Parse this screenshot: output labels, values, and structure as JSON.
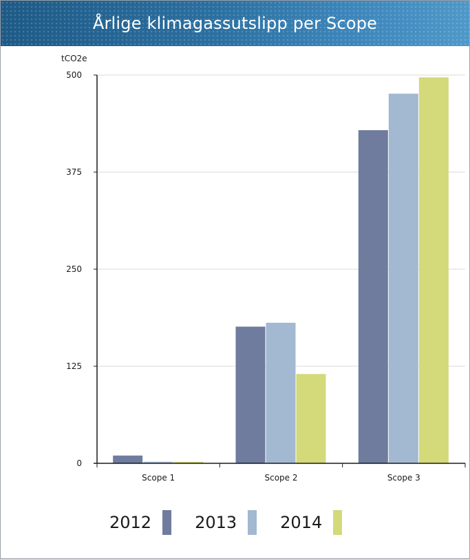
{
  "header": {
    "title": "Årlige klimagassutslipp per Scope"
  },
  "chart_data": {
    "type": "bar",
    "title": "Årlige klimagassutslipp per Scope",
    "ylabel": "tCO2e",
    "xlabel": "",
    "categories": [
      "Scope 1",
      "Scope 2",
      "Scope 3"
    ],
    "ylim": [
      0,
      500
    ],
    "yticks": [
      "0",
      "125",
      "250",
      "375",
      "500"
    ],
    "grid": true,
    "legend_placement": "bottom",
    "series": [
      {
        "name": "2012",
        "color": "#6f7c9e",
        "values": [
          10,
          176,
          429
        ]
      },
      {
        "name": "2013",
        "color": "#a3b8d1",
        "values": [
          2,
          181,
          476
        ]
      },
      {
        "name": "2014",
        "color": "#d4d97a",
        "values": [
          2,
          115,
          497
        ]
      }
    ]
  }
}
